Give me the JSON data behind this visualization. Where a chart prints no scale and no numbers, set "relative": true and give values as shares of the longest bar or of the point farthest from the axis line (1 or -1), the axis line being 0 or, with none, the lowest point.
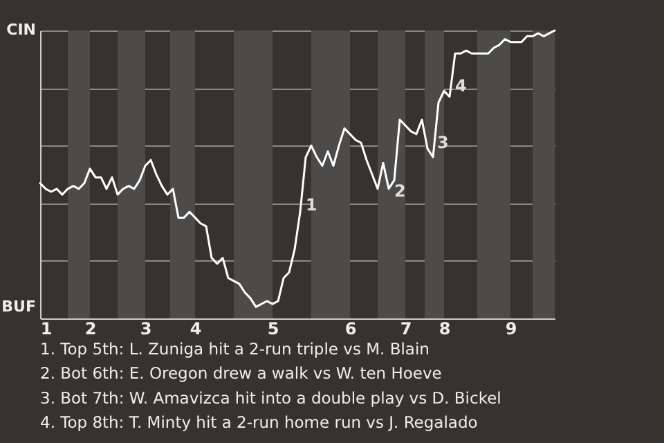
{
  "chart_data": {
    "type": "line",
    "relative": true,
    "categories": [
      null,
      "1",
      null,
      null,
      null,
      null,
      null,
      null,
      null,
      "2",
      null,
      null,
      null,
      null,
      null,
      null,
      null,
      null,
      null,
      "3",
      null,
      null,
      null,
      null,
      null,
      null,
      null,
      null,
      "4",
      null,
      null,
      null,
      null,
      null,
      null,
      null,
      null,
      null,
      null,
      null,
      null,
      null,
      "5",
      null,
      null,
      null,
      null,
      null,
      null,
      null,
      null,
      null,
      null,
      null,
      null,
      null,
      "6",
      null,
      null,
      null,
      null,
      null,
      null,
      null,
      null,
      null,
      "7",
      null,
      null,
      null,
      null,
      null,
      null,
      "8",
      null,
      null,
      null,
      null,
      null,
      null,
      null,
      null,
      null,
      null,
      null,
      "9",
      null,
      null,
      null,
      null,
      null,
      null,
      null,
      null
    ],
    "series": [
      {
        "color": "#ffffff",
        "values": [
          0.47,
          0.45,
          0.44,
          0.45,
          0.43,
          0.45,
          0.46,
          0.45,
          0.47,
          0.52,
          0.49,
          0.49,
          0.45,
          0.49,
          0.43,
          0.45,
          0.46,
          0.45,
          0.48,
          0.53,
          0.55,
          0.5,
          0.46,
          0.43,
          0.45,
          0.35,
          0.35,
          0.37,
          0.35,
          0.33,
          0.32,
          0.21,
          0.19,
          0.21,
          0.14,
          0.13,
          0.12,
          0.09,
          0.07,
          0.04,
          0.05,
          0.06,
          0.05,
          0.06,
          0.14,
          0.16,
          0.24,
          0.37,
          0.56,
          0.6,
          0.56,
          0.53,
          0.58,
          0.53,
          0.6,
          0.66,
          0.64,
          0.62,
          0.61,
          0.55,
          0.5,
          0.45,
          0.54,
          0.45,
          0.48,
          0.69,
          0.67,
          0.65,
          0.64,
          0.69,
          0.59,
          0.56,
          0.75,
          0.79,
          0.77,
          0.92,
          0.92,
          0.93,
          0.92,
          0.92,
          0.92,
          0.92,
          0.94,
          0.95,
          0.97,
          0.96,
          0.96,
          0.96,
          0.98,
          0.98,
          0.99,
          0.98,
          0.99,
          1
        ]
      }
    ],
    "grid": "y",
    "annotations": [
      "CIN",
      "BUF",
      "1",
      "2",
      "3",
      "4",
      "1. Top 5th: L. Zuniga hit a 2-run triple vs M. Blain",
      "2. Bot 6th: E. Oregon drew a walk vs W. ten Hoeve",
      "3. Bot 7th: W. Amavizca hit into a double play vs D. Bickel",
      "4. Top 8th: T. Minty hit a 2-run home run vs J. Regalado"
    ]
  }
}
